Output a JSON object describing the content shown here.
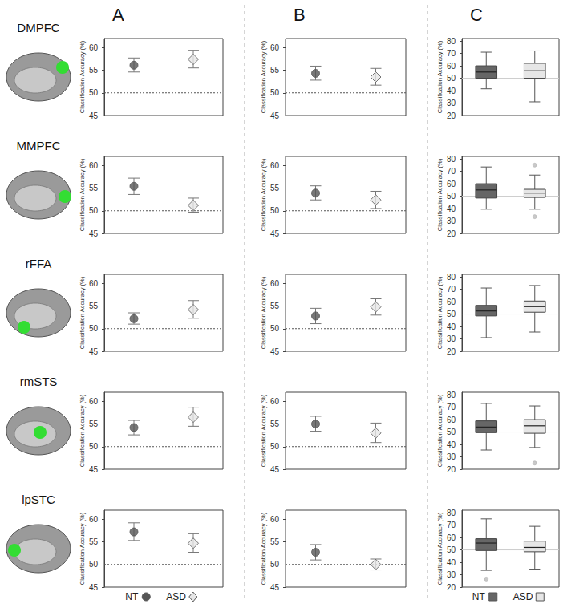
{
  "column_labels": [
    "A",
    "B",
    "C"
  ],
  "row_labels": [
    "DMPFC",
    "MMPFC",
    "rFFA",
    "rmSTS",
    "lpSTC"
  ],
  "chart_data": [
    {
      "type": "scatter",
      "ylabel": "Classification Accuracy (%)",
      "categories": [
        "NT",
        "ASD"
      ],
      "tick_labels": "y",
      "grid": false,
      "ylim": [
        45,
        62
      ],
      "yticks": [
        45,
        50,
        55,
        60
      ],
      "reference_line": 50,
      "series": [
        {
          "name": "NT",
          "color": "#555555",
          "marker": "circle",
          "values": [
            56.1,
            null
          ],
          "error": [
            [
              54.6,
              57.7
            ],
            null
          ]
        },
        {
          "name": "ASD",
          "color": "#e6e6e6",
          "marker": "diamond",
          "values": [
            null,
            57.4
          ],
          "error": [
            null,
            [
              55.5,
              59.4
            ]
          ]
        }
      ]
    },
    {
      "type": "scatter",
      "ylabel": "Classification Accuracy (%)",
      "categories": [
        "NT",
        "ASD"
      ],
      "tick_labels": "y",
      "grid": false,
      "ylim": [
        45,
        62
      ],
      "yticks": [
        45,
        50,
        55,
        60
      ],
      "reference_line": 50,
      "series": [
        {
          "name": "NT",
          "color": "#555555",
          "marker": "circle",
          "values": [
            54.3,
            null
          ],
          "error": [
            [
              52.8,
              55.9
            ],
            null
          ]
        },
        {
          "name": "ASD",
          "color": "#e6e6e6",
          "marker": "diamond",
          "values": [
            null,
            53.5
          ],
          "error": [
            null,
            [
              51.7,
              55.4
            ]
          ]
        }
      ]
    },
    {
      "type": "boxplot",
      "ylabel": "Classification Accuracy (%)",
      "categories": [
        "NT",
        "ASD"
      ],
      "tick_labels": "y",
      "grid": false,
      "ylim": [
        20,
        82
      ],
      "yticks": [
        20,
        30,
        40,
        50,
        60,
        70,
        80
      ],
      "reference_line": 50,
      "series": [
        {
          "name": "NT",
          "color": "#666666",
          "marker": "square",
          "values": [
            [
              41.5,
              50,
              55,
              60,
              71
            ],
            null
          ],
          "outliers": [
            [],
            null
          ]
        },
        {
          "name": "ASD",
          "color": "#e6e6e6",
          "marker": "square",
          "values": [
            null,
            [
              31,
              50,
              56,
              62,
              72
            ]
          ],
          "outliers": [
            null,
            []
          ]
        }
      ]
    },
    {
      "type": "scatter",
      "ylabel": "Classification Accuracy (%)",
      "categories": [
        "NT",
        "ASD"
      ],
      "tick_labels": "y",
      "grid": false,
      "ylim": [
        45,
        62
      ],
      "yticks": [
        45,
        50,
        55,
        60
      ],
      "reference_line": 50,
      "series": [
        {
          "name": "NT",
          "color": "#555555",
          "marker": "circle",
          "values": [
            55.4,
            null
          ],
          "error": [
            [
              53.6,
              57.2
            ],
            null
          ]
        },
        {
          "name": "ASD",
          "color": "#e6e6e6",
          "marker": "diamond",
          "values": [
            null,
            51.2
          ],
          "error": [
            null,
            [
              49.7,
              52.8
            ]
          ]
        }
      ]
    },
    {
      "type": "scatter",
      "ylabel": "Classification Accuracy (%)",
      "categories": [
        "NT",
        "ASD"
      ],
      "tick_labels": "y",
      "grid": false,
      "ylim": [
        45,
        62
      ],
      "yticks": [
        45,
        50,
        55,
        60
      ],
      "reference_line": 50,
      "series": [
        {
          "name": "NT",
          "color": "#555555",
          "marker": "circle",
          "values": [
            53.9,
            null
          ],
          "error": [
            [
              52.4,
              55.5
            ],
            null
          ]
        },
        {
          "name": "ASD",
          "color": "#e6e6e6",
          "marker": "diamond",
          "values": [
            null,
            52.4
          ],
          "error": [
            null,
            [
              50.5,
              54.3
            ]
          ]
        }
      ]
    },
    {
      "type": "boxplot",
      "ylabel": "Classification Accuracy (%)",
      "categories": [
        "NT",
        "ASD"
      ],
      "tick_labels": "y",
      "grid": false,
      "ylim": [
        20,
        82
      ],
      "yticks": [
        20,
        30,
        40,
        50,
        60,
        70,
        80
      ],
      "reference_line": 50,
      "series": [
        {
          "name": "NT",
          "color": "#666666",
          "marker": "square",
          "values": [
            [
              39.5,
              48.5,
              55,
              60,
              73.5
            ],
            null
          ],
          "outliers": [
            [],
            null
          ]
        },
        {
          "name": "ASD",
          "color": "#e6e6e6",
          "marker": "square",
          "values": [
            null,
            [
              39.5,
              49,
              52.5,
              55.5,
              67
            ]
          ],
          "outliers": [
            null,
            [
              75,
              33.5
            ]
          ]
        }
      ]
    },
    {
      "type": "scatter",
      "ylabel": "Classification Accuracy (%)",
      "categories": [
        "NT",
        "ASD"
      ],
      "tick_labels": "y",
      "grid": false,
      "ylim": [
        45,
        62
      ],
      "yticks": [
        45,
        50,
        55,
        60
      ],
      "reference_line": 50,
      "series": [
        {
          "name": "NT",
          "color": "#555555",
          "marker": "circle",
          "values": [
            52.2,
            null
          ],
          "error": [
            [
              51.0,
              53.5
            ],
            null
          ]
        },
        {
          "name": "ASD",
          "color": "#e6e6e6",
          "marker": "diamond",
          "values": [
            null,
            54.2
          ],
          "error": [
            null,
            [
              52.3,
              56.2
            ]
          ]
        }
      ]
    },
    {
      "type": "scatter",
      "ylabel": "Classification Accuracy (%)",
      "categories": [
        "NT",
        "ASD"
      ],
      "tick_labels": "y",
      "grid": false,
      "ylim": [
        45,
        62
      ],
      "yticks": [
        45,
        50,
        55,
        60
      ],
      "reference_line": 50,
      "series": [
        {
          "name": "NT",
          "color": "#555555",
          "marker": "circle",
          "values": [
            52.8,
            null
          ],
          "error": [
            [
              51.1,
              54.5
            ],
            null
          ]
        },
        {
          "name": "ASD",
          "color": "#e6e6e6",
          "marker": "diamond",
          "values": [
            null,
            54.8
          ],
          "error": [
            null,
            [
              53.0,
              56.6
            ]
          ]
        }
      ]
    },
    {
      "type": "boxplot",
      "ylabel": "Classification Accuracy (%)",
      "categories": [
        "NT",
        "ASD"
      ],
      "tick_labels": "y",
      "grid": false,
      "ylim": [
        20,
        82
      ],
      "yticks": [
        20,
        30,
        40,
        50,
        60,
        70,
        80
      ],
      "reference_line": 50,
      "series": [
        {
          "name": "NT",
          "color": "#666666",
          "marker": "square",
          "values": [
            [
              31,
              48.5,
              52.5,
              57,
              71
            ],
            null
          ],
          "outliers": [
            [],
            null
          ]
        },
        {
          "name": "ASD",
          "color": "#e6e6e6",
          "marker": "square",
          "values": [
            null,
            [
              35.5,
              51.5,
              56,
              60.5,
              73
            ]
          ],
          "outliers": [
            null,
            []
          ]
        }
      ]
    },
    {
      "type": "scatter",
      "ylabel": "Classification Accuracy (%)",
      "categories": [
        "NT",
        "ASD"
      ],
      "tick_labels": "y",
      "grid": false,
      "ylim": [
        45,
        62
      ],
      "yticks": [
        45,
        50,
        55,
        60
      ],
      "reference_line": 50,
      "series": [
        {
          "name": "NT",
          "color": "#555555",
          "marker": "circle",
          "values": [
            54.2,
            null
          ],
          "error": [
            [
              52.6,
              55.8
            ],
            null
          ]
        },
        {
          "name": "ASD",
          "color": "#e6e6e6",
          "marker": "diamond",
          "values": [
            null,
            56.5
          ],
          "error": [
            null,
            [
              54.5,
              58.7
            ]
          ]
        }
      ]
    },
    {
      "type": "scatter",
      "ylabel": "Classification Accuracy (%)",
      "categories": [
        "NT",
        "ASD"
      ],
      "tick_labels": "y",
      "grid": false,
      "ylim": [
        45,
        62
      ],
      "yticks": [
        45,
        50,
        55,
        60
      ],
      "reference_line": 50,
      "series": [
        {
          "name": "NT",
          "color": "#555555",
          "marker": "circle",
          "values": [
            55.0,
            null
          ],
          "error": [
            [
              53.4,
              56.7
            ],
            null
          ]
        },
        {
          "name": "ASD",
          "color": "#e6e6e6",
          "marker": "diamond",
          "values": [
            null,
            53.0
          ],
          "error": [
            null,
            [
              50.9,
              55.2
            ]
          ]
        }
      ]
    },
    {
      "type": "boxplot",
      "ylabel": "Classification Accuracy (%)",
      "categories": [
        "NT",
        "ASD"
      ],
      "tick_labels": "y",
      "grid": false,
      "ylim": [
        20,
        82
      ],
      "yticks": [
        20,
        30,
        40,
        50,
        60,
        70,
        80
      ],
      "reference_line": 50,
      "series": [
        {
          "name": "NT",
          "color": "#666666",
          "marker": "square",
          "values": [
            [
              35.5,
              49.5,
              54,
              59,
              73
            ],
            null
          ],
          "outliers": [
            [],
            null
          ]
        },
        {
          "name": "ASD",
          "color": "#e6e6e6",
          "marker": "square",
          "values": [
            null,
            [
              37.5,
              49,
              55,
              60,
              71
            ]
          ],
          "outliers": [
            null,
            [
              25
            ]
          ]
        }
      ]
    },
    {
      "type": "scatter",
      "ylabel": "Classification Accuracy (%)",
      "categories": [
        "NT",
        "ASD"
      ],
      "tick_labels": "y",
      "grid": false,
      "ylim": [
        45,
        62
      ],
      "yticks": [
        45,
        50,
        55,
        60
      ],
      "reference_line": 50,
      "legend": "bottom",
      "series": [
        {
          "name": "NT",
          "color": "#555555",
          "marker": "circle",
          "values": [
            57.2,
            null
          ],
          "error": [
            [
              55.3,
              59.2
            ],
            null
          ]
        },
        {
          "name": "ASD",
          "color": "#e6e6e6",
          "marker": "diamond",
          "values": [
            null,
            54.7
          ],
          "error": [
            null,
            [
              52.7,
              56.8
            ]
          ]
        }
      ]
    },
    {
      "type": "scatter",
      "ylabel": "Classification Accuracy (%)",
      "categories": [
        "NT",
        "ASD"
      ],
      "tick_labels": "y",
      "grid": false,
      "ylim": [
        45,
        62
      ],
      "yticks": [
        45,
        50,
        55,
        60
      ],
      "reference_line": 50,
      "series": [
        {
          "name": "NT",
          "color": "#555555",
          "marker": "circle",
          "values": [
            52.7,
            null
          ],
          "error": [
            [
              51.0,
              54.4
            ],
            null
          ]
        },
        {
          "name": "ASD",
          "color": "#e6e6e6",
          "marker": "diamond",
          "values": [
            null,
            50.0
          ],
          "error": [
            null,
            [
              48.8,
              51.2
            ]
          ]
        }
      ]
    },
    {
      "type": "boxplot",
      "ylabel": "Classification Accuracy (%)",
      "categories": [
        "NT",
        "ASD"
      ],
      "tick_labels": "y",
      "grid": false,
      "ylim": [
        20,
        82
      ],
      "yticks": [
        20,
        30,
        40,
        50,
        60,
        70,
        80
      ],
      "reference_line": 50,
      "legend": "bottom",
      "series": [
        {
          "name": "NT",
          "color": "#666666",
          "marker": "square",
          "values": [
            [
              33.5,
              49.5,
              55.5,
              59,
              75
            ],
            null
          ],
          "outliers": [
            [
              26.5
            ],
            null
          ]
        },
        {
          "name": "ASD",
          "color": "#e6e6e6",
          "marker": "square",
          "values": [
            null,
            [
              34.5,
              48.5,
              52,
              57,
              69
            ]
          ],
          "outliers": [
            null,
            []
          ]
        }
      ]
    }
  ]
}
